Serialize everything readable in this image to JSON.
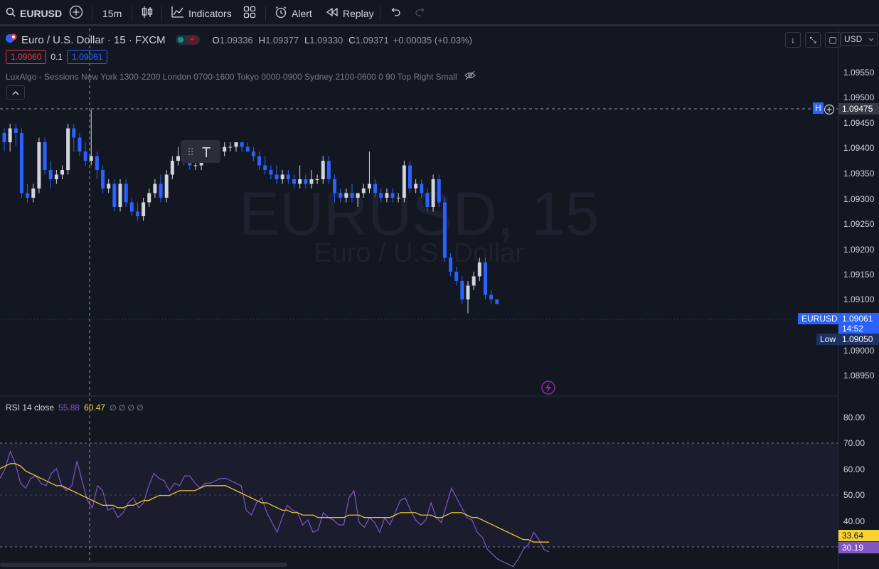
{
  "toolbar": {
    "symbol": "EURUSD",
    "interval": "15m",
    "indicators_label": "Indicators",
    "alert_label": "Alert",
    "replay_label": "Replay"
  },
  "legend": {
    "title": "Euro / U.S. Dollar · 15 · FXCM",
    "o_label": "O",
    "o_value": "1.09336",
    "h_label": "H",
    "h_value": "1.09377",
    "l_label": "L",
    "l_value": "1.09330",
    "c_label": "C",
    "c_value": "1.09371",
    "change": "+0.00035 (+0.03%)",
    "bid": "1.09060",
    "spread": "0.1",
    "ask": "1.09061",
    "indicator_line": "LuxAlgo - Sessions New York 1300-2200 London 0700-1600 Tokyo 0000-0900 Sydney 2100-0600 0 90 Top Right Small"
  },
  "currency": "USD",
  "watermark": {
    "symbol": "EURUSD, 15",
    "description": "Euro / U.S. Dollar"
  },
  "price_axis": {
    "ticks": [
      "1.09550",
      "1.09500",
      "1.09450",
      "1.09400",
      "1.09350",
      "1.09300",
      "1.09250",
      "1.09200",
      "1.09150",
      "1.09100",
      "1.09000",
      "1.08950"
    ],
    "crosshair_price": "1.09475",
    "crosshair_tag": "H",
    "last_symbol": "EURUSD",
    "last_price": "1.09061",
    "countdown": "14:52",
    "low_label": "Low",
    "low_price": "1.09050"
  },
  "rsi": {
    "title": "RSI 14 close",
    "value": "55.88",
    "ma_value": "60.47",
    "extras": "∅ ∅ ∅ ∅",
    "ticks": [
      "80.00",
      "70.00",
      "60.00",
      "50.00",
      "40.00"
    ],
    "ma_tag": "33.64",
    "rsi_tag": "30.19"
  },
  "colors": {
    "background": "#131722",
    "up": "#d1d4dc",
    "down": "#2962ff",
    "rsi_line": "#7e57c2",
    "rsi_ma": "#f7d230",
    "tag_blue": "#2962ff"
  },
  "chart_data": {
    "type": "candlestick",
    "price_range": [
      1.0891,
      1.0957
    ],
    "candles": [
      [
        1.0943,
        1.0944,
        1.0939,
        1.0941
      ],
      [
        1.0941,
        1.0945,
        1.0939,
        1.0944
      ],
      [
        1.0944,
        1.0945,
        1.094,
        1.0943
      ],
      [
        1.0943,
        1.0944,
        1.0929,
        1.093
      ],
      [
        1.093,
        1.0932,
        1.0928,
        1.0929
      ],
      [
        1.0929,
        1.0932,
        1.0928,
        1.0931
      ],
      [
        1.0931,
        1.0942,
        1.093,
        1.0941
      ],
      [
        1.0941,
        1.0942,
        1.0934,
        1.0935
      ],
      [
        1.0935,
        1.0937,
        1.0931,
        1.0933
      ],
      [
        1.0933,
        1.0935,
        1.0932,
        1.0934
      ],
      [
        1.0934,
        1.0936,
        1.0933,
        1.0935
      ],
      [
        1.0935,
        1.0945,
        1.0934,
        1.0944
      ],
      [
        1.0944,
        1.0945,
        1.0939,
        1.0942
      ],
      [
        1.0942,
        1.0943,
        1.0938,
        1.0939
      ],
      [
        1.0939,
        1.0941,
        1.0936,
        1.0937
      ],
      [
        1.0937,
        1.0948,
        1.0936,
        1.0938
      ],
      [
        1.0938,
        1.0939,
        1.0933,
        1.0935
      ],
      [
        1.0935,
        1.0936,
        1.093,
        1.0931
      ],
      [
        1.0931,
        1.0933,
        1.093,
        1.0932
      ],
      [
        1.0932,
        1.0933,
        1.0926,
        1.0927
      ],
      [
        1.0927,
        1.0933,
        1.0926,
        1.0932
      ],
      [
        1.0932,
        1.0933,
        1.0927,
        1.0928
      ],
      [
        1.0928,
        1.0929,
        1.0925,
        1.0926
      ],
      [
        1.0926,
        1.0928,
        1.0924,
        1.0925
      ],
      [
        1.0925,
        1.0929,
        1.0924,
        1.0928
      ],
      [
        1.0928,
        1.0931,
        1.0927,
        1.093
      ],
      [
        1.093,
        1.0933,
        1.0929,
        1.0932
      ],
      [
        1.0932,
        1.0934,
        1.0928,
        1.0929
      ],
      [
        1.0929,
        1.0935,
        1.0928,
        1.0934
      ],
      [
        1.0934,
        1.0938,
        1.0933,
        1.0937
      ],
      [
        1.0937,
        1.094,
        1.0936,
        1.0938
      ],
      [
        1.0938,
        1.0939,
        1.0936,
        1.0937
      ],
      [
        1.0937,
        1.0939,
        1.0935,
        1.0936
      ],
      [
        1.0936,
        1.0937,
        1.0935,
        1.0936
      ],
      [
        1.0936,
        1.0939,
        1.0935,
        1.0938
      ],
      [
        1.0938,
        1.0939,
        1.0937,
        1.0938
      ],
      [
        1.0938,
        1.094,
        1.0937,
        1.0939
      ],
      [
        1.0939,
        1.094,
        1.0938,
        1.0939
      ],
      [
        1.0939,
        1.0941,
        1.0938,
        1.094
      ],
      [
        1.094,
        1.0941,
        1.0939,
        1.094
      ],
      [
        1.094,
        1.0941,
        1.0939,
        1.0941
      ],
      [
        1.0941,
        1.0941,
        1.0939,
        1.094
      ],
      [
        1.094,
        1.0941,
        1.0939,
        1.0939
      ],
      [
        1.0939,
        1.094,
        1.0937,
        1.0938
      ],
      [
        1.0938,
        1.0939,
        1.0935,
        1.0936
      ],
      [
        1.0936,
        1.0938,
        1.0934,
        1.0935
      ],
      [
        1.0935,
        1.0936,
        1.0933,
        1.0934
      ],
      [
        1.0934,
        1.0936,
        1.0932,
        1.0933
      ],
      [
        1.0933,
        1.0935,
        1.0932,
        1.0934
      ],
      [
        1.0934,
        1.0935,
        1.0932,
        1.0933
      ],
      [
        1.0933,
        1.0934,
        1.0931,
        1.0932
      ],
      [
        1.0932,
        1.0936,
        1.0931,
        1.0933
      ],
      [
        1.0933,
        1.0934,
        1.0931,
        1.0932
      ],
      [
        1.0932,
        1.0935,
        1.0931,
        1.0933
      ],
      [
        1.0933,
        1.0934,
        1.0932,
        1.0933
      ],
      [
        1.0933,
        1.0938,
        1.0932,
        1.0937
      ],
      [
        1.0937,
        1.0938,
        1.0932,
        1.0933
      ],
      [
        1.0933,
        1.0934,
        1.0928,
        1.093
      ],
      [
        1.093,
        1.0931,
        1.0928,
        1.0929
      ],
      [
        1.0929,
        1.0931,
        1.0928,
        1.093
      ],
      [
        1.093,
        1.0932,
        1.0928,
        1.0929
      ],
      [
        1.0929,
        1.093,
        1.0927,
        1.093
      ],
      [
        1.093,
        1.0932,
        1.0929,
        1.0931
      ],
      [
        1.0931,
        1.0939,
        1.093,
        1.0932
      ],
      [
        1.0932,
        1.0933,
        1.0929,
        1.093
      ],
      [
        1.093,
        1.0931,
        1.0928,
        1.0929
      ],
      [
        1.0929,
        1.0931,
        1.0928,
        1.093
      ],
      [
        1.093,
        1.0931,
        1.0928,
        1.0929
      ],
      [
        1.0929,
        1.093,
        1.0928,
        1.0929
      ],
      [
        1.0929,
        1.0937,
        1.0928,
        1.0936
      ],
      [
        1.0936,
        1.0937,
        1.093,
        1.0931
      ],
      [
        1.0931,
        1.0933,
        1.093,
        1.0932
      ],
      [
        1.0932,
        1.0933,
        1.0929,
        1.093
      ],
      [
        1.093,
        1.0931,
        1.0926,
        1.0927
      ],
      [
        1.0927,
        1.0934,
        1.0926,
        1.0933
      ],
      [
        1.0933,
        1.0934,
        1.0927,
        1.0928
      ],
      [
        1.0928,
        1.0929,
        1.0915,
        1.0916
      ],
      [
        1.0916,
        1.0917,
        1.0912,
        1.0913
      ],
      [
        1.0913,
        1.0914,
        1.091,
        1.0911
      ],
      [
        1.0911,
        1.0912,
        1.0906,
        1.0907
      ],
      [
        1.0907,
        1.0911,
        1.0904,
        1.091
      ],
      [
        1.091,
        1.0913,
        1.0909,
        1.0912
      ],
      [
        1.0912,
        1.0916,
        1.0911,
        1.0915
      ],
      [
        1.0915,
        1.0916,
        1.0907,
        1.0908
      ],
      [
        1.0908,
        1.0909,
        1.0906,
        1.0907
      ],
      [
        1.0907,
        1.0907,
        1.0906,
        1.0906
      ]
    ],
    "rsi_range": [
      23,
      86
    ],
    "rsi_levels": [
      70,
      50,
      30
    ],
    "rsi_values": [
      60,
      64,
      71,
      66,
      58,
      56,
      60,
      61,
      58,
      57,
      62,
      64,
      57,
      55,
      57,
      67,
      59,
      51,
      48,
      57,
      55,
      47,
      48,
      44,
      46,
      50,
      52,
      48,
      50,
      57,
      62,
      60,
      59,
      55,
      58,
      57,
      61,
      61,
      58,
      56,
      58,
      58,
      59,
      60,
      60,
      59,
      58,
      57,
      47,
      45,
      50,
      52,
      46,
      42,
      38,
      44,
      49,
      47,
      46,
      41,
      43,
      38,
      39,
      46,
      44,
      43,
      41,
      41,
      52,
      55,
      42,
      40,
      44,
      42,
      38,
      44,
      41,
      46,
      51,
      52,
      47,
      43,
      41,
      43,
      50,
      44,
      42,
      49,
      56,
      52,
      48,
      44,
      43,
      38,
      36,
      31,
      29,
      27,
      26,
      25,
      24,
      27,
      31,
      33,
      38,
      35,
      31,
      30
    ],
    "rsi_ma_values": [
      64,
      65,
      66,
      66,
      65,
      63,
      62,
      61,
      60,
      59,
      58,
      57,
      57,
      56,
      55,
      54,
      53,
      52,
      51,
      50,
      49,
      49,
      49,
      48,
      48,
      49,
      49,
      50,
      51,
      51,
      52,
      53,
      53,
      53,
      54,
      55,
      55,
      55,
      55,
      56,
      57,
      57,
      57,
      57,
      57,
      56,
      55,
      54,
      53,
      52,
      51,
      50,
      50,
      49,
      48,
      47,
      47,
      46,
      46,
      45,
      45,
      45,
      44,
      44,
      44,
      44,
      44,
      44,
      45,
      45,
      45,
      44,
      44,
      44,
      44,
      44,
      44,
      45,
      46,
      46,
      46,
      46,
      45,
      45,
      45,
      44,
      44,
      45,
      46,
      46,
      46,
      45,
      44,
      44,
      43,
      42,
      41,
      40,
      39,
      38,
      37,
      36,
      35,
      35,
      34,
      34,
      34,
      34
    ]
  }
}
